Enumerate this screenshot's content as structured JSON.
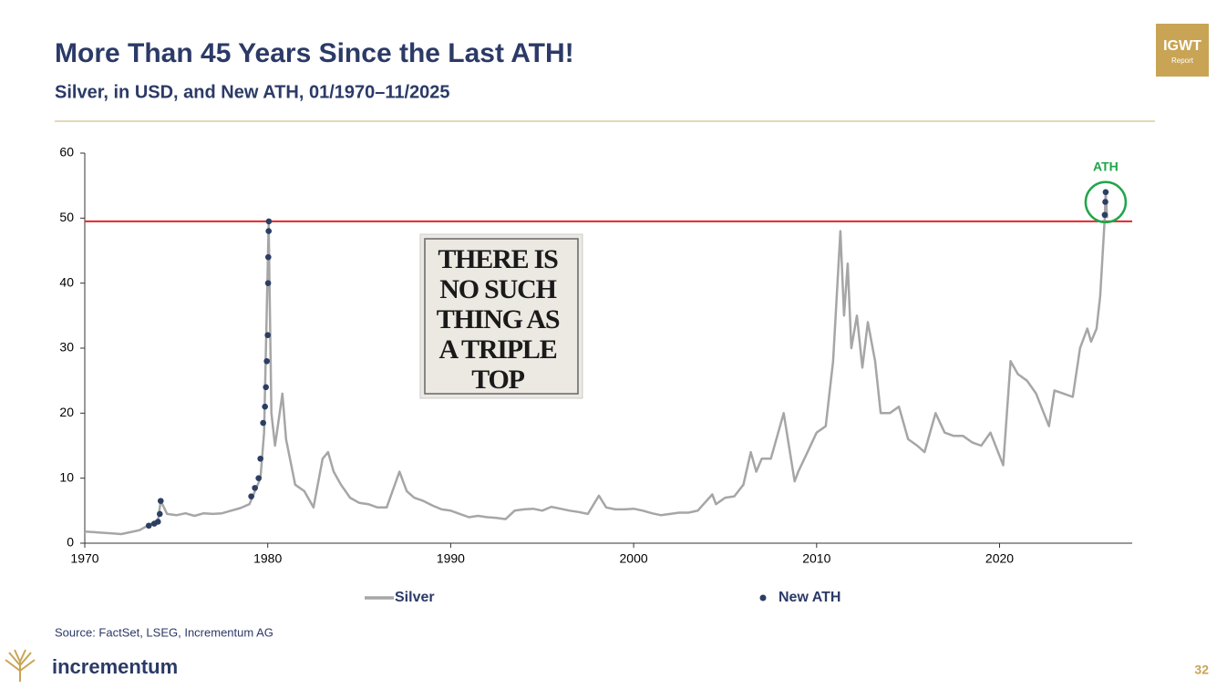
{
  "slide": {
    "badge_title": "IGWT",
    "badge_subtitle": "Report",
    "brand": "incrementum",
    "page": "32"
  },
  "chart_data": {
    "type": "line",
    "title": "More Than 45 Years Since the Last ATH!",
    "subtitle": "Silver, in USD, and New ATH, 01/1970–11/2025",
    "source": "Source: FactSet, LSEG, Incrementum AG",
    "xlim": [
      1970,
      2027
    ],
    "xticks": [
      1970,
      1980,
      1990,
      2000,
      2010,
      2020
    ],
    "ylim": [
      0,
      60
    ],
    "yticks": [
      0,
      10,
      20,
      30,
      40,
      50,
      60
    ],
    "grid": false,
    "legend": "bottom",
    "reference_line": {
      "value": 49.5,
      "color": "#e0262b"
    },
    "ath_label": "ATH",
    "ath_color": "#1fa64a",
    "callout": [
      "THERE IS",
      "NO SUCH",
      "THING AS",
      "A TRIPLE",
      "TOP"
    ],
    "series": [
      {
        "name": "Silver",
        "type": "line",
        "color": "#a6a6a6",
        "x": [
          1970,
          1970.5,
          1971,
          1971.5,
          1972,
          1972.5,
          1973,
          1973.5,
          1974,
          1974.15,
          1974.5,
          1975,
          1975.5,
          1976,
          1976.5,
          1977,
          1977.5,
          1978,
          1978.5,
          1979,
          1979.3,
          1979.6,
          1979.8,
          1980.05,
          1980.2,
          1980.4,
          1980.7,
          1980.8,
          1981,
          1981.5,
          1982,
          1982.5,
          1983,
          1983.3,
          1983.6,
          1984,
          1984.5,
          1985,
          1985.5,
          1986,
          1986.5,
          1987.2,
          1987.6,
          1988,
          1988.5,
          1989,
          1989.5,
          1990,
          1990.5,
          1991,
          1991.5,
          1992,
          1992.5,
          1993,
          1993.5,
          1994,
          1994.5,
          1995,
          1995.5,
          1996,
          1996.5,
          1997,
          1997.5,
          1998.1,
          1998.5,
          1999,
          1999.5,
          2000,
          2000.5,
          2001,
          2001.5,
          2002,
          2002.5,
          2003,
          2003.5,
          2004.3,
          2004.5,
          2005,
          2005.5,
          2006,
          2006.4,
          2006.7,
          2007,
          2007.5,
          2008.2,
          2008.8,
          2009,
          2009.5,
          2010,
          2010.5,
          2010.9,
          2011.3,
          2011.5,
          2011.7,
          2011.9,
          2012.2,
          2012.5,
          2012.8,
          2013.2,
          2013.5,
          2014,
          2014.5,
          2015,
          2015.5,
          2015.9,
          2016.5,
          2017,
          2017.5,
          2018,
          2018.5,
          2019,
          2019.5,
          2020.2,
          2020.6,
          2021,
          2021.5,
          2022,
          2022.7,
          2023,
          2023.5,
          2024,
          2024.4,
          2024.8,
          2025,
          2025.3,
          2025.5,
          2025.75,
          2025.8,
          2025.88
        ],
        "values": [
          1.8,
          1.7,
          1.6,
          1.5,
          1.4,
          1.7,
          2.0,
          2.8,
          3.5,
          6.5,
          4.5,
          4.3,
          4.6,
          4.2,
          4.6,
          4.5,
          4.6,
          5.0,
          5.4,
          6.0,
          8.0,
          10,
          17,
          49,
          20,
          15,
          21,
          23,
          16,
          9,
          8,
          5.5,
          13,
          14,
          11,
          9,
          7,
          6.2,
          6,
          5.5,
          5.5,
          11,
          8,
          7,
          6.5,
          5.8,
          5.2,
          5.0,
          4.5,
          4.0,
          4.2,
          4.0,
          3.9,
          3.7,
          5.0,
          5.2,
          5.3,
          5.0,
          5.6,
          5.3,
          5.0,
          4.8,
          4.5,
          7.3,
          5.5,
          5.2,
          5.2,
          5.3,
          5.0,
          4.6,
          4.3,
          4.5,
          4.7,
          4.7,
          5.0,
          7.5,
          6,
          7,
          7.2,
          9,
          14,
          11,
          13,
          13,
          20,
          9.5,
          11,
          14,
          17,
          18,
          28,
          48,
          35,
          43,
          30,
          35,
          27,
          34,
          28,
          20,
          20,
          21,
          16,
          15,
          14,
          20,
          17,
          16.5,
          16.5,
          15.5,
          15,
          17,
          12,
          28,
          26,
          25,
          23,
          18,
          23.5,
          23,
          22.5,
          30,
          33,
          31,
          33,
          38,
          50,
          54,
          50
        ]
      },
      {
        "name": "New ATH",
        "type": "scatter",
        "color": "#2c3e63",
        "x": [
          1973.5,
          1973.8,
          1974,
          1974.1,
          1974.15,
          1979.1,
          1979.3,
          1979.5,
          1979.6,
          1979.75,
          1979.85,
          1979.9,
          1979.95,
          1980,
          1980.02,
          1980.03,
          1980.05,
          1980.06,
          2025.75,
          2025.78,
          2025.8
        ],
        "values": [
          2.7,
          3.0,
          3.3,
          4.5,
          6.5,
          7.2,
          8.5,
          10,
          13,
          18.5,
          21,
          24,
          28,
          32,
          40,
          44,
          48,
          49.5,
          50.5,
          52.5,
          54
        ]
      }
    ]
  }
}
